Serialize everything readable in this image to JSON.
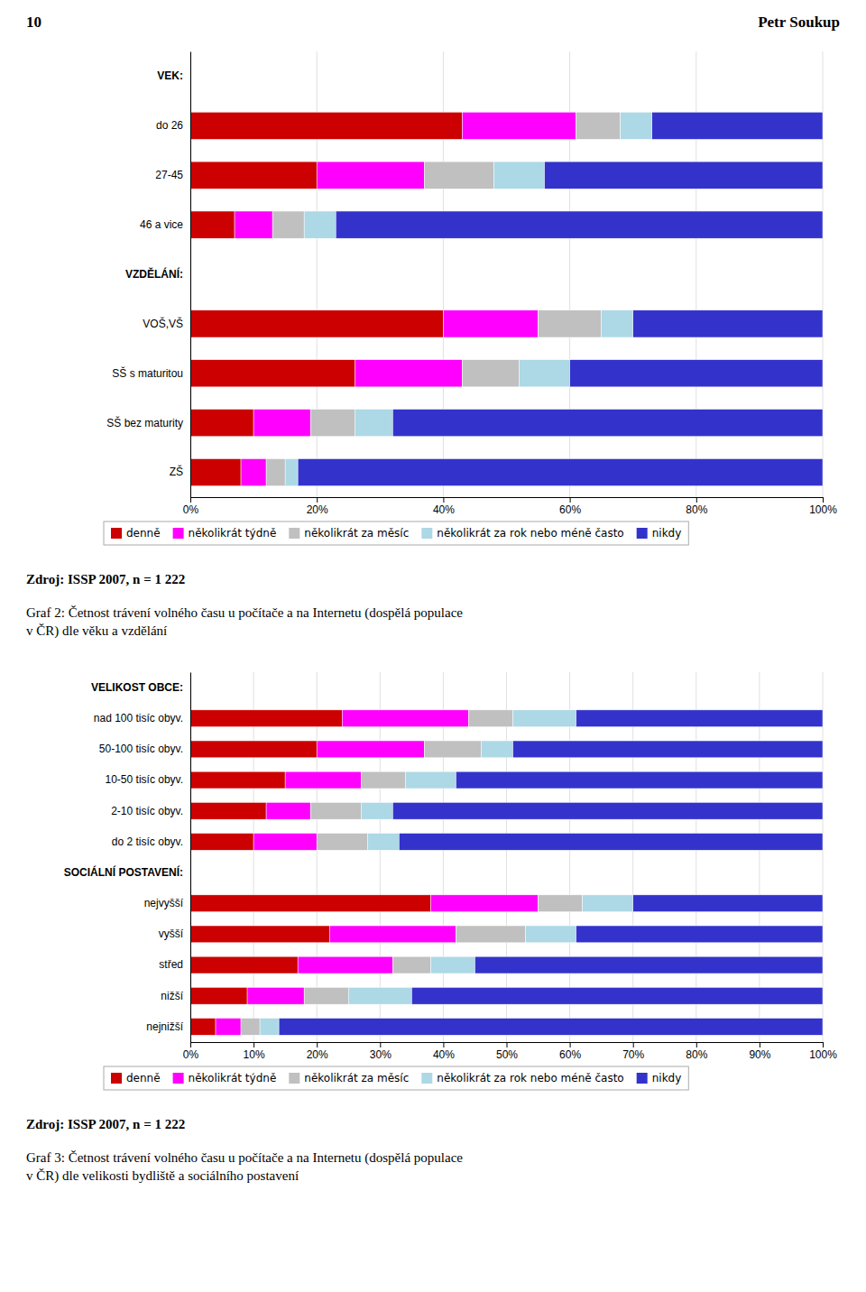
{
  "page_number": "10",
  "page_author": "Petr Soukup",
  "chart_data": [
    {
      "type": "bar",
      "orientation": "horizontal",
      "stacked": true,
      "title": "Graf 2: Četnost trávení volného času u počítače a na Internetu (dospělá populace\nv ČR) dle věku a vzdělání",
      "annotations": [
        "Zdroj: ISSP 2007, n = 1 222"
      ],
      "categories": [
        "VEK:",
        "do 26",
        "27-45",
        "46 a vice",
        "VZDĚLÁNÍ:",
        "VOŠ,VŠ",
        "SŠ s maturitou",
        "SŠ bez maturity",
        "ZŠ"
      ],
      "series": [
        {
          "name": "denně",
          "color": "#cc0000",
          "values": [
            null,
            43,
            20,
            7,
            null,
            40,
            26,
            10,
            8
          ]
        },
        {
          "name": "několikrát týdně",
          "color": "#ff00ff",
          "values": [
            null,
            18,
            17,
            6,
            null,
            15,
            17,
            9,
            4
          ]
        },
        {
          "name": "několikrát za měsíc",
          "color": "#c0c0c0",
          "values": [
            null,
            7,
            11,
            5,
            null,
            10,
            9,
            7,
            3
          ]
        },
        {
          "name": "několikrát za rok nebo méně často",
          "color": "#add8e6",
          "values": [
            null,
            5,
            8,
            5,
            null,
            5,
            8,
            6,
            2
          ]
        },
        {
          "name": "nikdy",
          "color": "#3333cc",
          "values": [
            null,
            27,
            44,
            77,
            null,
            30,
            40,
            68,
            83
          ]
        }
      ],
      "xlim": [
        0,
        100
      ],
      "xticks": [
        {
          "value": 0,
          "label": "0%"
        },
        {
          "value": 20,
          "label": "20%"
        },
        {
          "value": 40,
          "label": "40%"
        },
        {
          "value": 60,
          "label": "60%"
        },
        {
          "value": 80,
          "label": "80%"
        },
        {
          "value": 100,
          "label": "100%"
        }
      ],
      "grid": true,
      "legend": "bottom"
    },
    {
      "type": "bar",
      "orientation": "horizontal",
      "stacked": true,
      "title": "Graf 3: Četnost trávení volného času u počítače a na Internetu (dospělá populace\nv ČR) dle velikosti bydliště a sociálního postavení",
      "annotations": [
        "Zdroj: ISSP 2007, n = 1 222"
      ],
      "categories": [
        "VELIKOST OBCE:",
        "nad 100 tisíc obyv.",
        "50-100 tisíc obyv.",
        "10-50 tisíc obyv.",
        "2-10 tisíc obyv.",
        "do 2 tisíc obyv.",
        "SOCIÁLNÍ POSTAVENÍ:",
        "nejvyšší",
        "vyšší",
        "střed",
        "nižší",
        "nejnižší"
      ],
      "series": [
        {
          "name": "denně",
          "color": "#cc0000",
          "values": [
            null,
            24,
            20,
            15,
            12,
            10,
            null,
            38,
            22,
            17,
            9,
            4
          ]
        },
        {
          "name": "několikrát týdně",
          "color": "#ff00ff",
          "values": [
            null,
            20,
            17,
            12,
            7,
            10,
            null,
            17,
            20,
            15,
            9,
            4
          ]
        },
        {
          "name": "několikrát za měsíc",
          "color": "#c0c0c0",
          "values": [
            null,
            7,
            9,
            7,
            8,
            8,
            null,
            7,
            11,
            6,
            7,
            3
          ]
        },
        {
          "name": "několikrát za rok nebo méně často",
          "color": "#add8e6",
          "values": [
            null,
            10,
            5,
            8,
            5,
            5,
            null,
            8,
            8,
            7,
            10,
            3
          ]
        },
        {
          "name": "nikdy",
          "color": "#3333cc",
          "values": [
            null,
            39,
            49,
            58,
            68,
            67,
            null,
            30,
            39,
            55,
            65,
            86
          ]
        }
      ],
      "xlim": [
        0,
        100
      ],
      "xticks": [
        {
          "value": 0,
          "label": "0%"
        },
        {
          "value": 10,
          "label": "10%"
        },
        {
          "value": 20,
          "label": "20%"
        },
        {
          "value": 30,
          "label": "30%"
        },
        {
          "value": 40,
          "label": "40%"
        },
        {
          "value": 50,
          "label": "50%"
        },
        {
          "value": 60,
          "label": "60%"
        },
        {
          "value": 70,
          "label": "70%"
        },
        {
          "value": 80,
          "label": "80%"
        },
        {
          "value": 90,
          "label": "90%"
        },
        {
          "value": 100,
          "label": "100%"
        }
      ],
      "grid": true,
      "legend": "bottom"
    }
  ]
}
